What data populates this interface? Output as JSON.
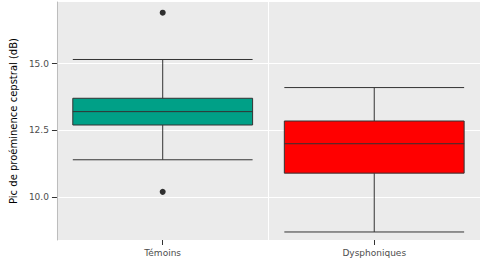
{
  "chart_data": {
    "type": "boxplot",
    "y_label": "Pic de proéminence cepstral (dB)",
    "categories": [
      "Témoins",
      "Dysphoniques"
    ],
    "values": [
      [
        11.4,
        12.7,
        13.2,
        13.7,
        15.15
      ],
      [
        8.7,
        10.9,
        12.0,
        12.85,
        14.1
      ]
    ],
    "outliers": [
      [
        16.9,
        10.2
      ],
      []
    ],
    "colors": [
      "#00A087",
      "#FF0000"
    ],
    "ylim": [
      8.4,
      17.3
    ],
    "yticks": [
      {
        "value": 10,
        "label": "10.0"
      },
      {
        "value": 12.5,
        "label": "12.5"
      },
      {
        "value": 15,
        "label": "15.0"
      }
    ],
    "grid": true
  }
}
